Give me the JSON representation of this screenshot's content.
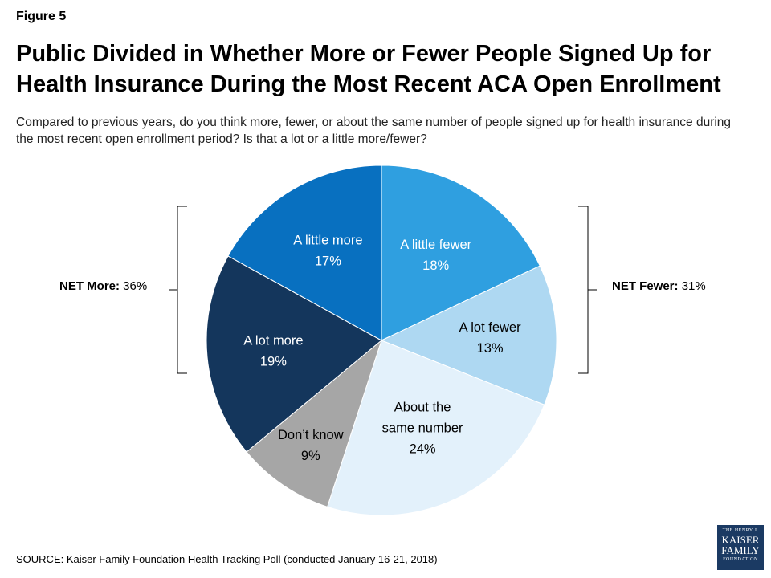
{
  "figure_label": "Figure 5",
  "net_more": {
    "label": "NET More:",
    "value": "36%"
  },
  "net_fewer": {
    "label": "NET Fewer:",
    "value": "31%"
  },
  "source": "SOURCE: Kaiser Family Foundation Health Tracking Poll (conducted January 16-21, 2018)",
  "logo": {
    "line1": "THE HENRY J.",
    "line2": "KAISER",
    "line3": "FAMILY",
    "line4": "FOUNDATION"
  },
  "colors": {
    "text_dark": "#000000",
    "text_light": "#ffffff"
  },
  "chart_data": {
    "type": "pie",
    "title": "Public Divided in Whether More or Fewer People Signed Up for Health Insurance During the Most Recent ACA Open Enrollment",
    "subtitle": "Compared to previous years, do you think more, fewer, or about the same number of people signed up for health insurance during the most recent open enrollment period? Is that a lot or a little more/fewer?",
    "slices": [
      {
        "label": "A little fewer",
        "value": 18,
        "value_label": "18%",
        "color": "#2f9fe0"
      },
      {
        "label": "A lot fewer",
        "value": 13,
        "value_label": "13%",
        "color": "#aed8f2"
      },
      {
        "label": "About the same number",
        "value": 24,
        "value_label": "24%",
        "color": "#e3f1fb"
      },
      {
        "label": "Don’t know",
        "value": 9,
        "value_label": "9%",
        "color": "#a6a6a6"
      },
      {
        "label": "A lot more",
        "value": 19,
        "value_label": "19%",
        "color": "#14365c"
      },
      {
        "label": "A little more",
        "value": 17,
        "value_label": "17%",
        "color": "#0870c0"
      }
    ]
  }
}
